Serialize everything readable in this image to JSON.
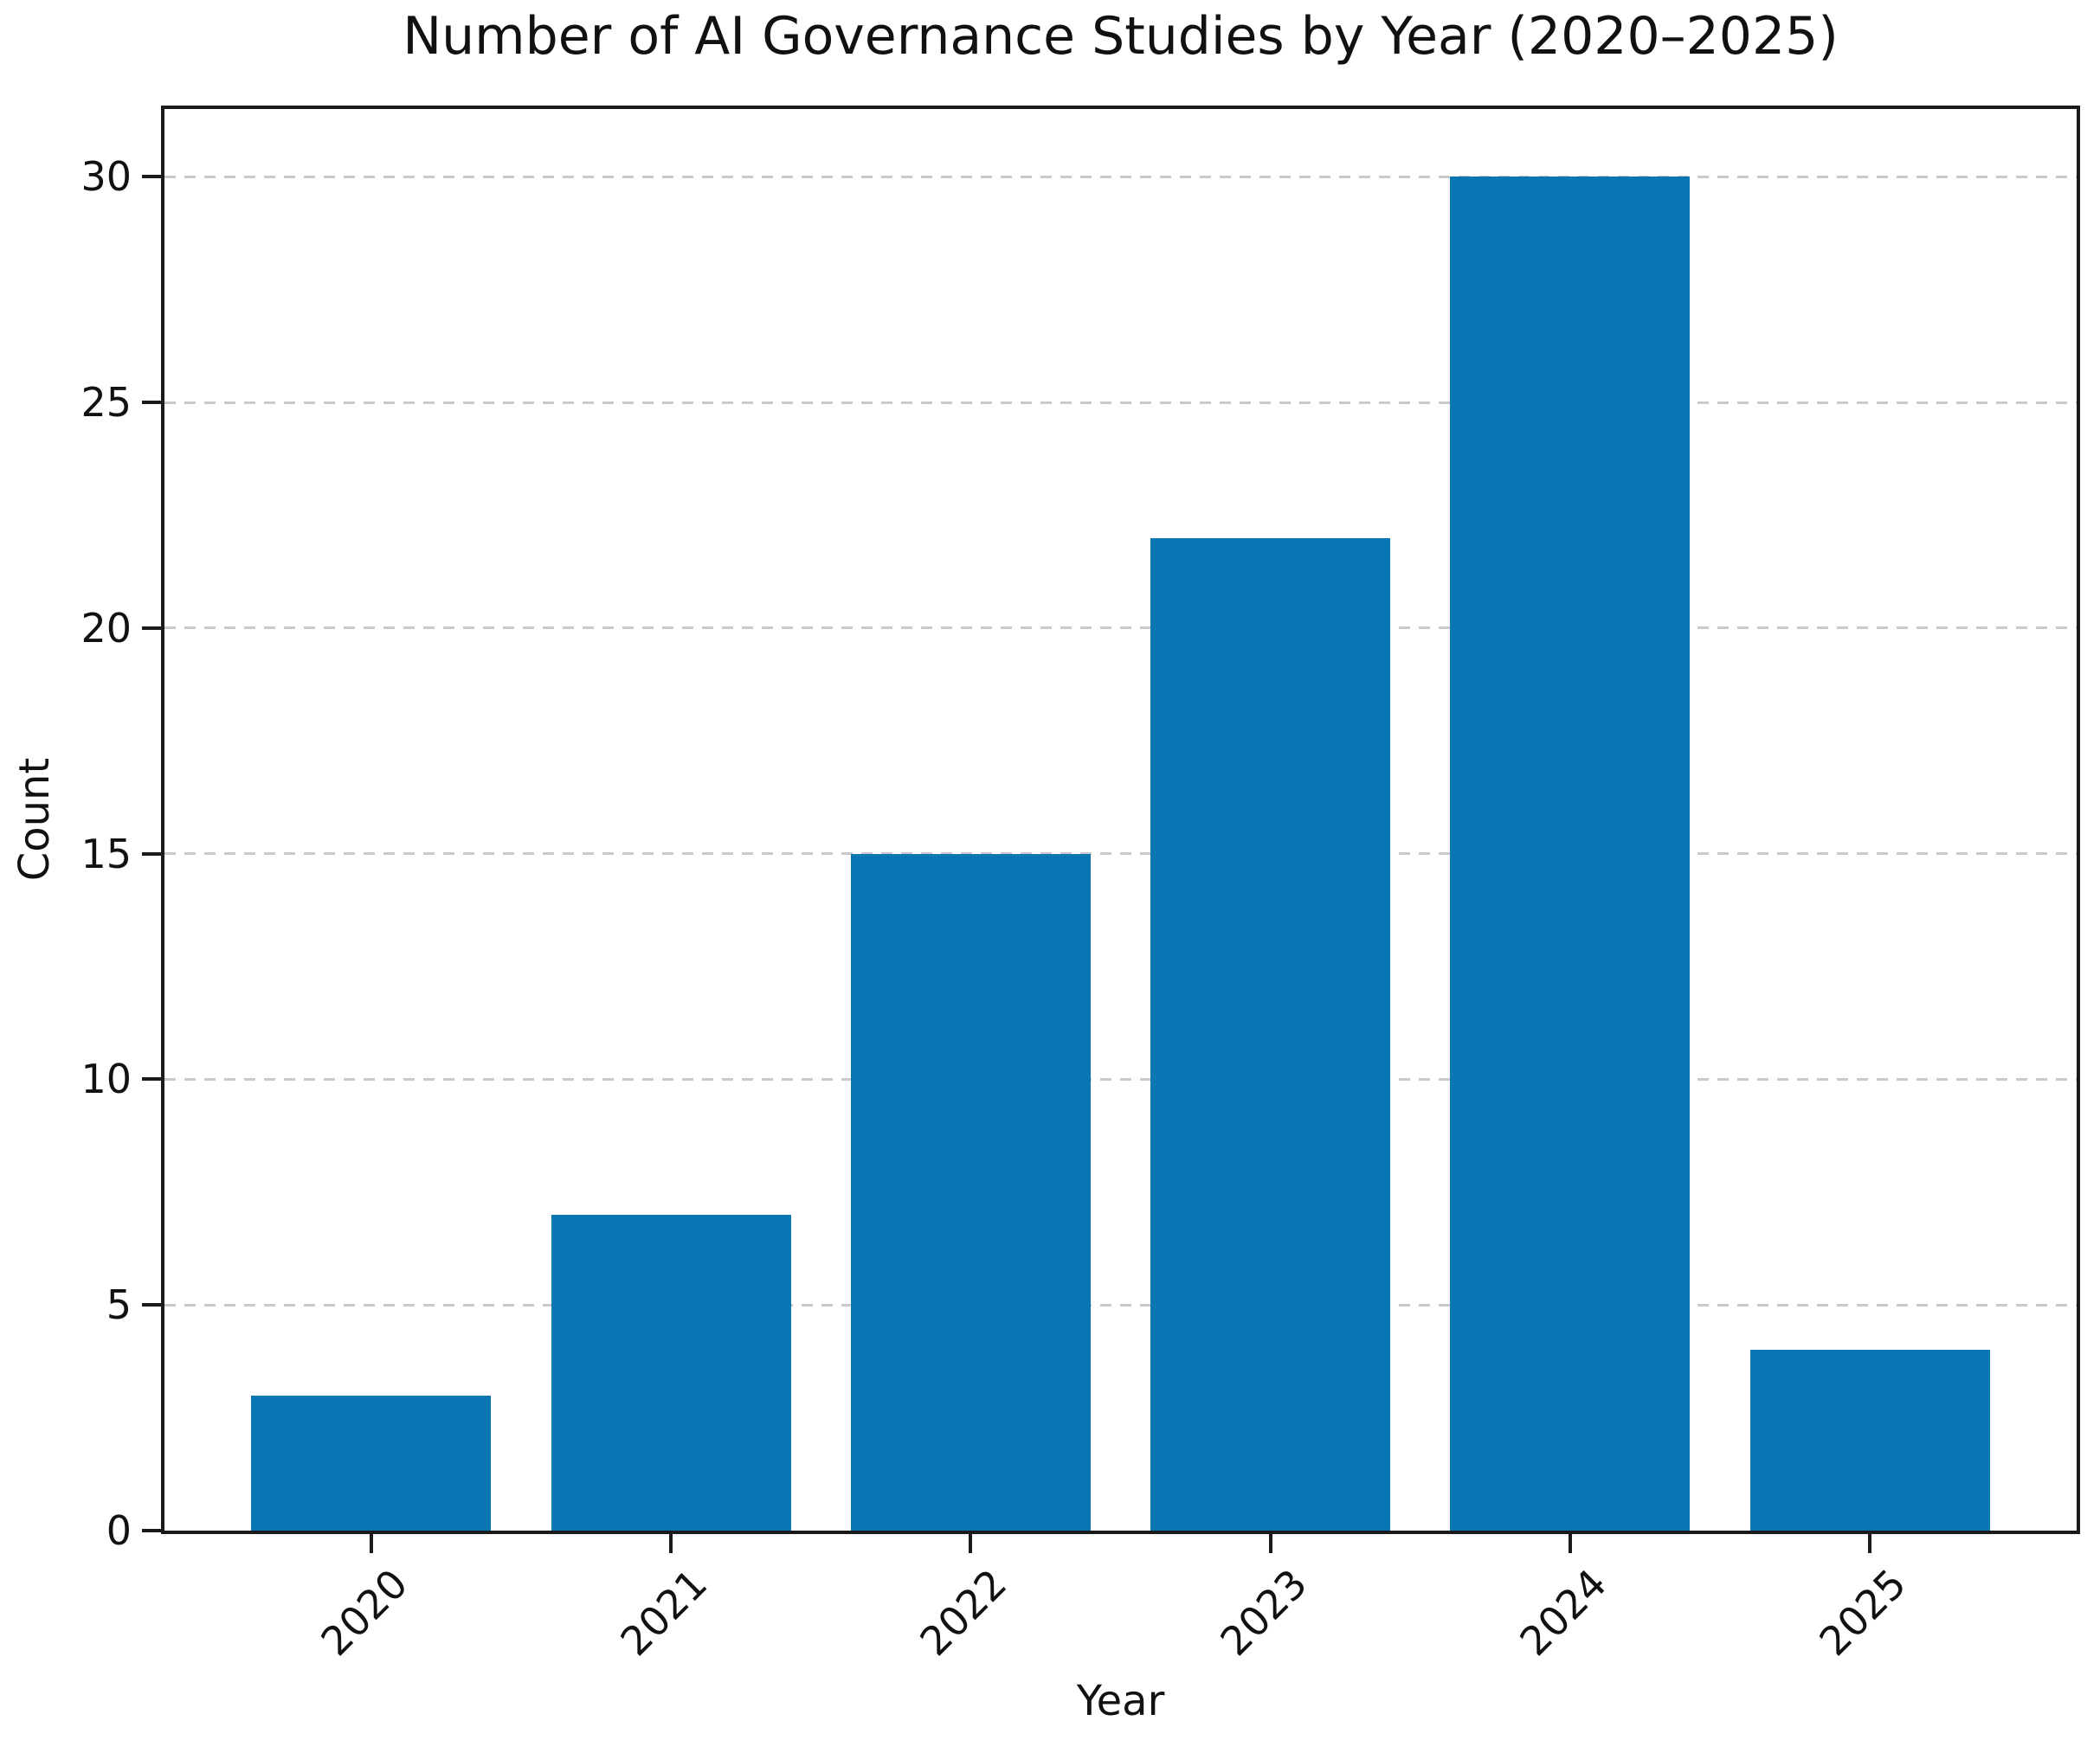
{
  "chart_data": {
    "type": "bar",
    "title": "Number of AI Governance Studies by Year (2020–2025)",
    "xlabel": "Year",
    "ylabel": "Count",
    "categories": [
      "2020",
      "2021",
      "2022",
      "2023",
      "2024",
      "2025"
    ],
    "values": [
      3,
      7,
      15,
      22,
      30,
      4
    ],
    "ylim": [
      0,
      31.5
    ],
    "yticks": [
      0,
      5,
      10,
      15,
      20,
      25,
      30
    ],
    "x_tick_rotation_deg": 45,
    "bar_width_fraction": 0.8,
    "grid": "horizontal-dashed",
    "legend": "none",
    "colors": {
      "bar": "#0b76b4",
      "grid": "#c9c9c9",
      "axis": "#1a1a1a",
      "text": "#111111",
      "background": "#ffffff"
    }
  }
}
